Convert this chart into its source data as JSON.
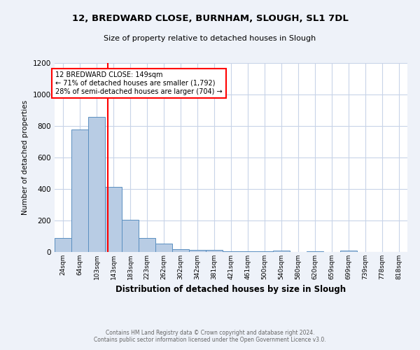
{
  "title1": "12, BREDWARD CLOSE, BURNHAM, SLOUGH, SL1 7DL",
  "title2": "Size of property relative to detached houses in Slough",
  "xlabel": "Distribution of detached houses by size in Slough",
  "ylabel": "Number of detached properties",
  "categories": [
    "24sqm",
    "64sqm",
    "103sqm",
    "143sqm",
    "183sqm",
    "223sqm",
    "262sqm",
    "302sqm",
    "342sqm",
    "381sqm",
    "421sqm",
    "461sqm",
    "500sqm",
    "540sqm",
    "580sqm",
    "620sqm",
    "659sqm",
    "699sqm",
    "739sqm",
    "778sqm",
    "818sqm"
  ],
  "values": [
    90,
    780,
    860,
    415,
    205,
    90,
    55,
    20,
    15,
    15,
    5,
    5,
    5,
    10,
    0,
    5,
    0,
    10,
    0,
    0,
    0
  ],
  "bar_color": "#b8cce4",
  "bar_edge_color": "#5a8fc0",
  "annotation_line1": "12 BREDWARD CLOSE: 149sqm",
  "annotation_line2": "← 71% of detached houses are smaller (1,792)",
  "annotation_line3": "28% of semi-detached houses are larger (704) →",
  "ylim": [
    0,
    1200
  ],
  "yticks": [
    0,
    200,
    400,
    600,
    800,
    1000,
    1200
  ],
  "footnote1": "Contains HM Land Registry data © Crown copyright and database right 2024.",
  "footnote2": "Contains public sector information licensed under the Open Government Licence v3.0.",
  "bg_color": "#eef2f9",
  "plot_bg_color": "#ffffff",
  "grid_color": "#c8d4e8"
}
